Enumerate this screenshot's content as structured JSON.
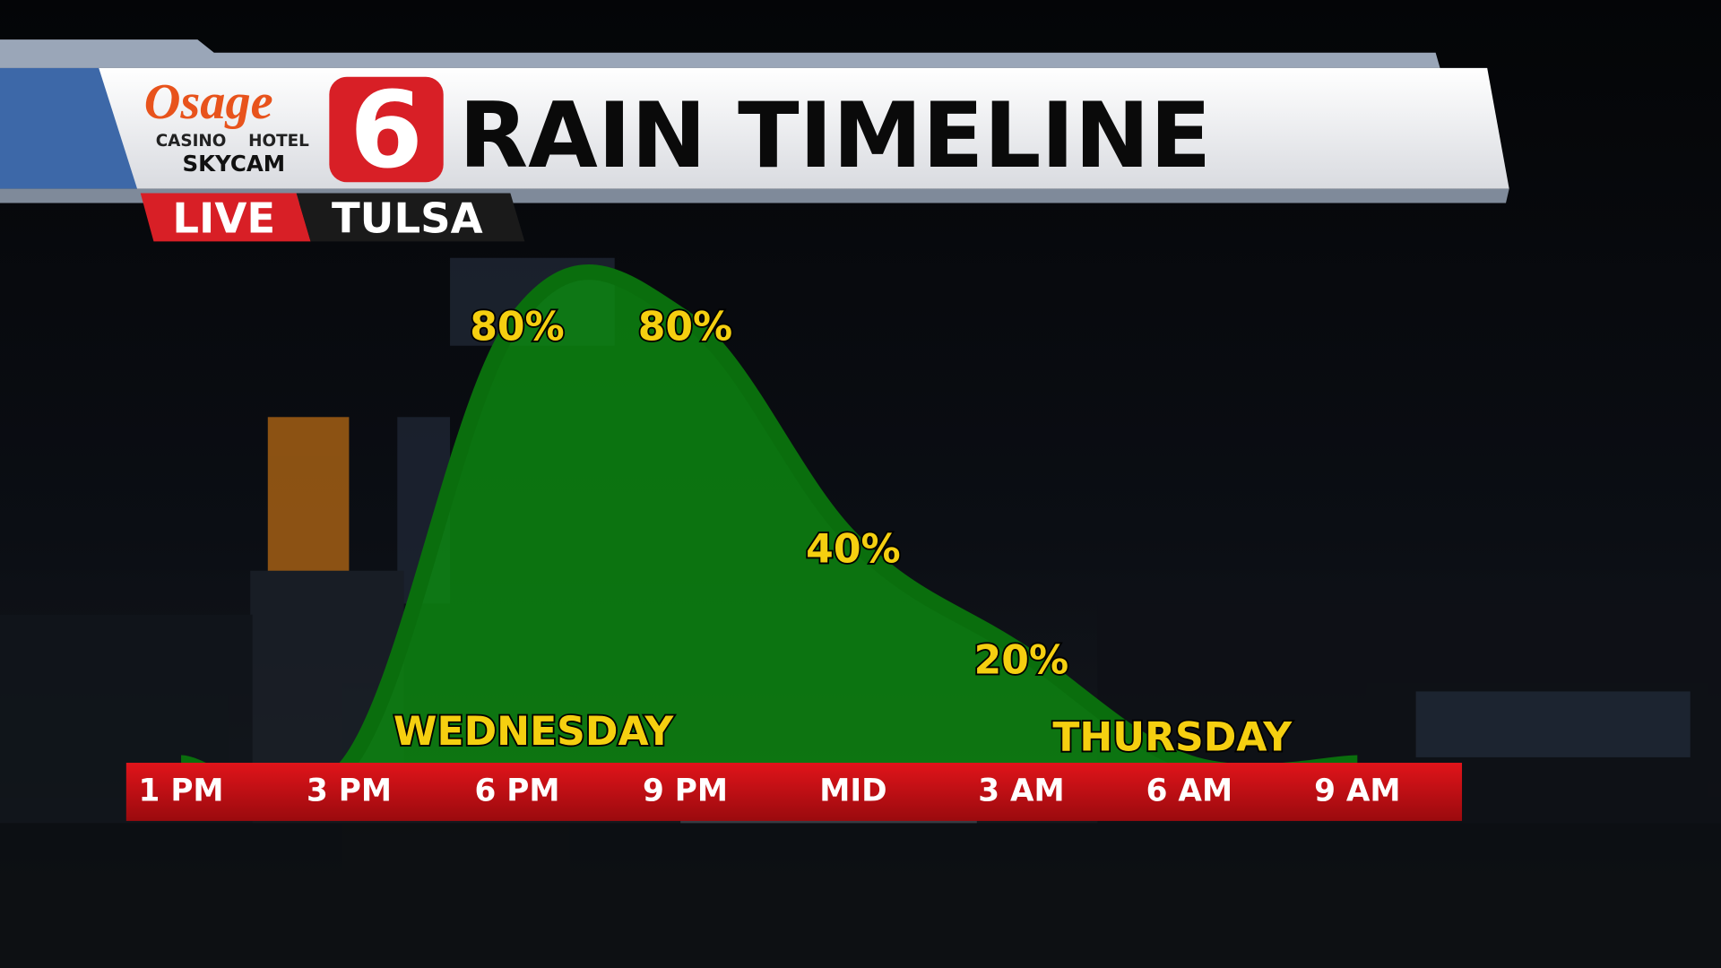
{
  "header": {
    "title": "RAIN TIMELINE",
    "logo": {
      "brand": "Osage",
      "line1a": "CASINO",
      "line1b": "HOTEL",
      "line2": "SKYCAM",
      "channel": "6"
    },
    "live": "LIVE",
    "location": "TULSA"
  },
  "chart_data": {
    "type": "area",
    "categories": [
      "1 PM",
      "3 PM",
      "6 PM",
      "9 PM",
      "MID",
      "3 AM",
      "6 AM",
      "9 AM"
    ],
    "values": [
      0,
      0,
      80,
      80,
      40,
      20,
      0,
      0
    ],
    "value_labels": [
      null,
      null,
      "80%",
      "80%",
      "40%",
      "20%",
      null,
      null
    ],
    "color": "#0c8a10",
    "annotations": [
      "WEDNESDAY",
      "THURSDAY"
    ]
  }
}
